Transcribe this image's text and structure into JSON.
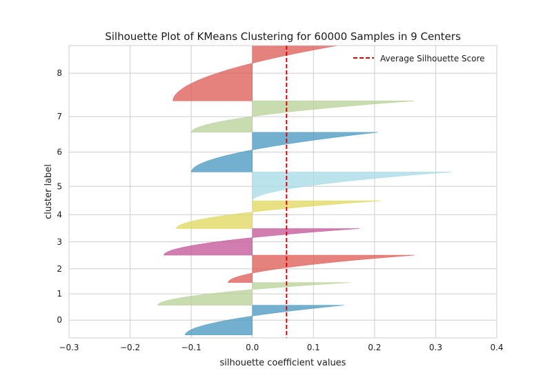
{
  "chart_data": {
    "type": "area",
    "title": "Silhouette Plot of KMeans Clustering for 60000 Samples in 9 Centers",
    "xlabel": "silhouette coefficient values",
    "ylabel": "cluster label",
    "xlim": [
      -0.3,
      0.4
    ],
    "xticks": [
      "−0.3",
      "−0.2",
      "−0.1",
      "0.0",
      "0.1",
      "0.2",
      "0.3",
      "0.4"
    ],
    "xtick_values": [
      -0.3,
      -0.2,
      -0.1,
      0.0,
      0.1,
      0.2,
      0.3,
      0.4
    ],
    "ylim": [
      -600,
      59850
    ],
    "grid": true,
    "legend": {
      "placement": "top-right",
      "entries": [
        {
          "label": "Average Silhouette Score",
          "color": "#e00000",
          "style": "dashed"
        }
      ]
    },
    "average_silhouette_score": 0.056,
    "clusters": [
      {
        "label": "0",
        "color": "#4c9ac2",
        "y_lower": 0,
        "y_upper": 6150,
        "min": -0.11,
        "max": 0.15
      },
      {
        "label": "1",
        "color": "#b8d29a",
        "y_lower": 6150,
        "y_upper": 10850,
        "min": -0.155,
        "max": 0.16
      },
      {
        "label": "2",
        "color": "#de5f5a",
        "y_lower": 10850,
        "y_upper": 16500,
        "min": -0.04,
        "max": 0.265
      },
      {
        "label": "3",
        "color": "#c5589a",
        "y_lower": 16500,
        "y_upper": 22000,
        "min": -0.145,
        "max": 0.175
      },
      {
        "label": "4",
        "color": "#e2d860",
        "y_lower": 22000,
        "y_upper": 27750,
        "min": -0.125,
        "max": 0.21
      },
      {
        "label": "5",
        "color": "#a8dbe6",
        "y_lower": 27750,
        "y_upper": 33700,
        "min": 0.0,
        "max": 0.325
      },
      {
        "label": "6",
        "color": "#4c9ac2",
        "y_lower": 33700,
        "y_upper": 41900,
        "min": -0.1,
        "max": 0.205
      },
      {
        "label": "7",
        "color": "#b8d29a",
        "y_lower": 41900,
        "y_upper": 48400,
        "min": -0.1,
        "max": 0.265
      },
      {
        "label": "8",
        "color": "#de5f5a",
        "y_lower": 48400,
        "y_upper": 59850,
        "min": -0.13,
        "max": 0.14
      }
    ]
  }
}
